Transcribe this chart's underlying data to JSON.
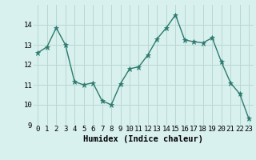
{
  "x": [
    0,
    1,
    2,
    3,
    4,
    5,
    6,
    7,
    8,
    9,
    10,
    11,
    12,
    13,
    14,
    15,
    16,
    17,
    18,
    19,
    20,
    21,
    22,
    23
  ],
  "y": [
    12.6,
    12.9,
    13.85,
    13.0,
    11.15,
    11.0,
    11.1,
    10.2,
    10.0,
    11.05,
    11.8,
    11.9,
    12.5,
    13.3,
    13.85,
    14.5,
    13.25,
    13.15,
    13.1,
    13.35,
    12.15,
    11.1,
    10.55,
    9.3
  ],
  "line_color": "#2d7a6e",
  "marker_color": "#2d7a6e",
  "bg_color": "#d8f0ee",
  "grid_color": "#b8d8d4",
  "xlabel": "Humidex (Indice chaleur)",
  "ylim": [
    9,
    15
  ],
  "xlim": [
    -0.5,
    23.5
  ],
  "yticks": [
    9,
    10,
    11,
    12,
    13,
    14
  ],
  "xtick_labels": [
    "0",
    "1",
    "2",
    "3",
    "4",
    "5",
    "6",
    "7",
    "8",
    "9",
    "10",
    "11",
    "12",
    "13",
    "14",
    "15",
    "16",
    "17",
    "18",
    "19",
    "20",
    "21",
    "22",
    "23"
  ],
  "xlabel_fontsize": 7.5,
  "tick_fontsize": 6.5,
  "marker_size": 2.5,
  "linewidth": 1.0
}
